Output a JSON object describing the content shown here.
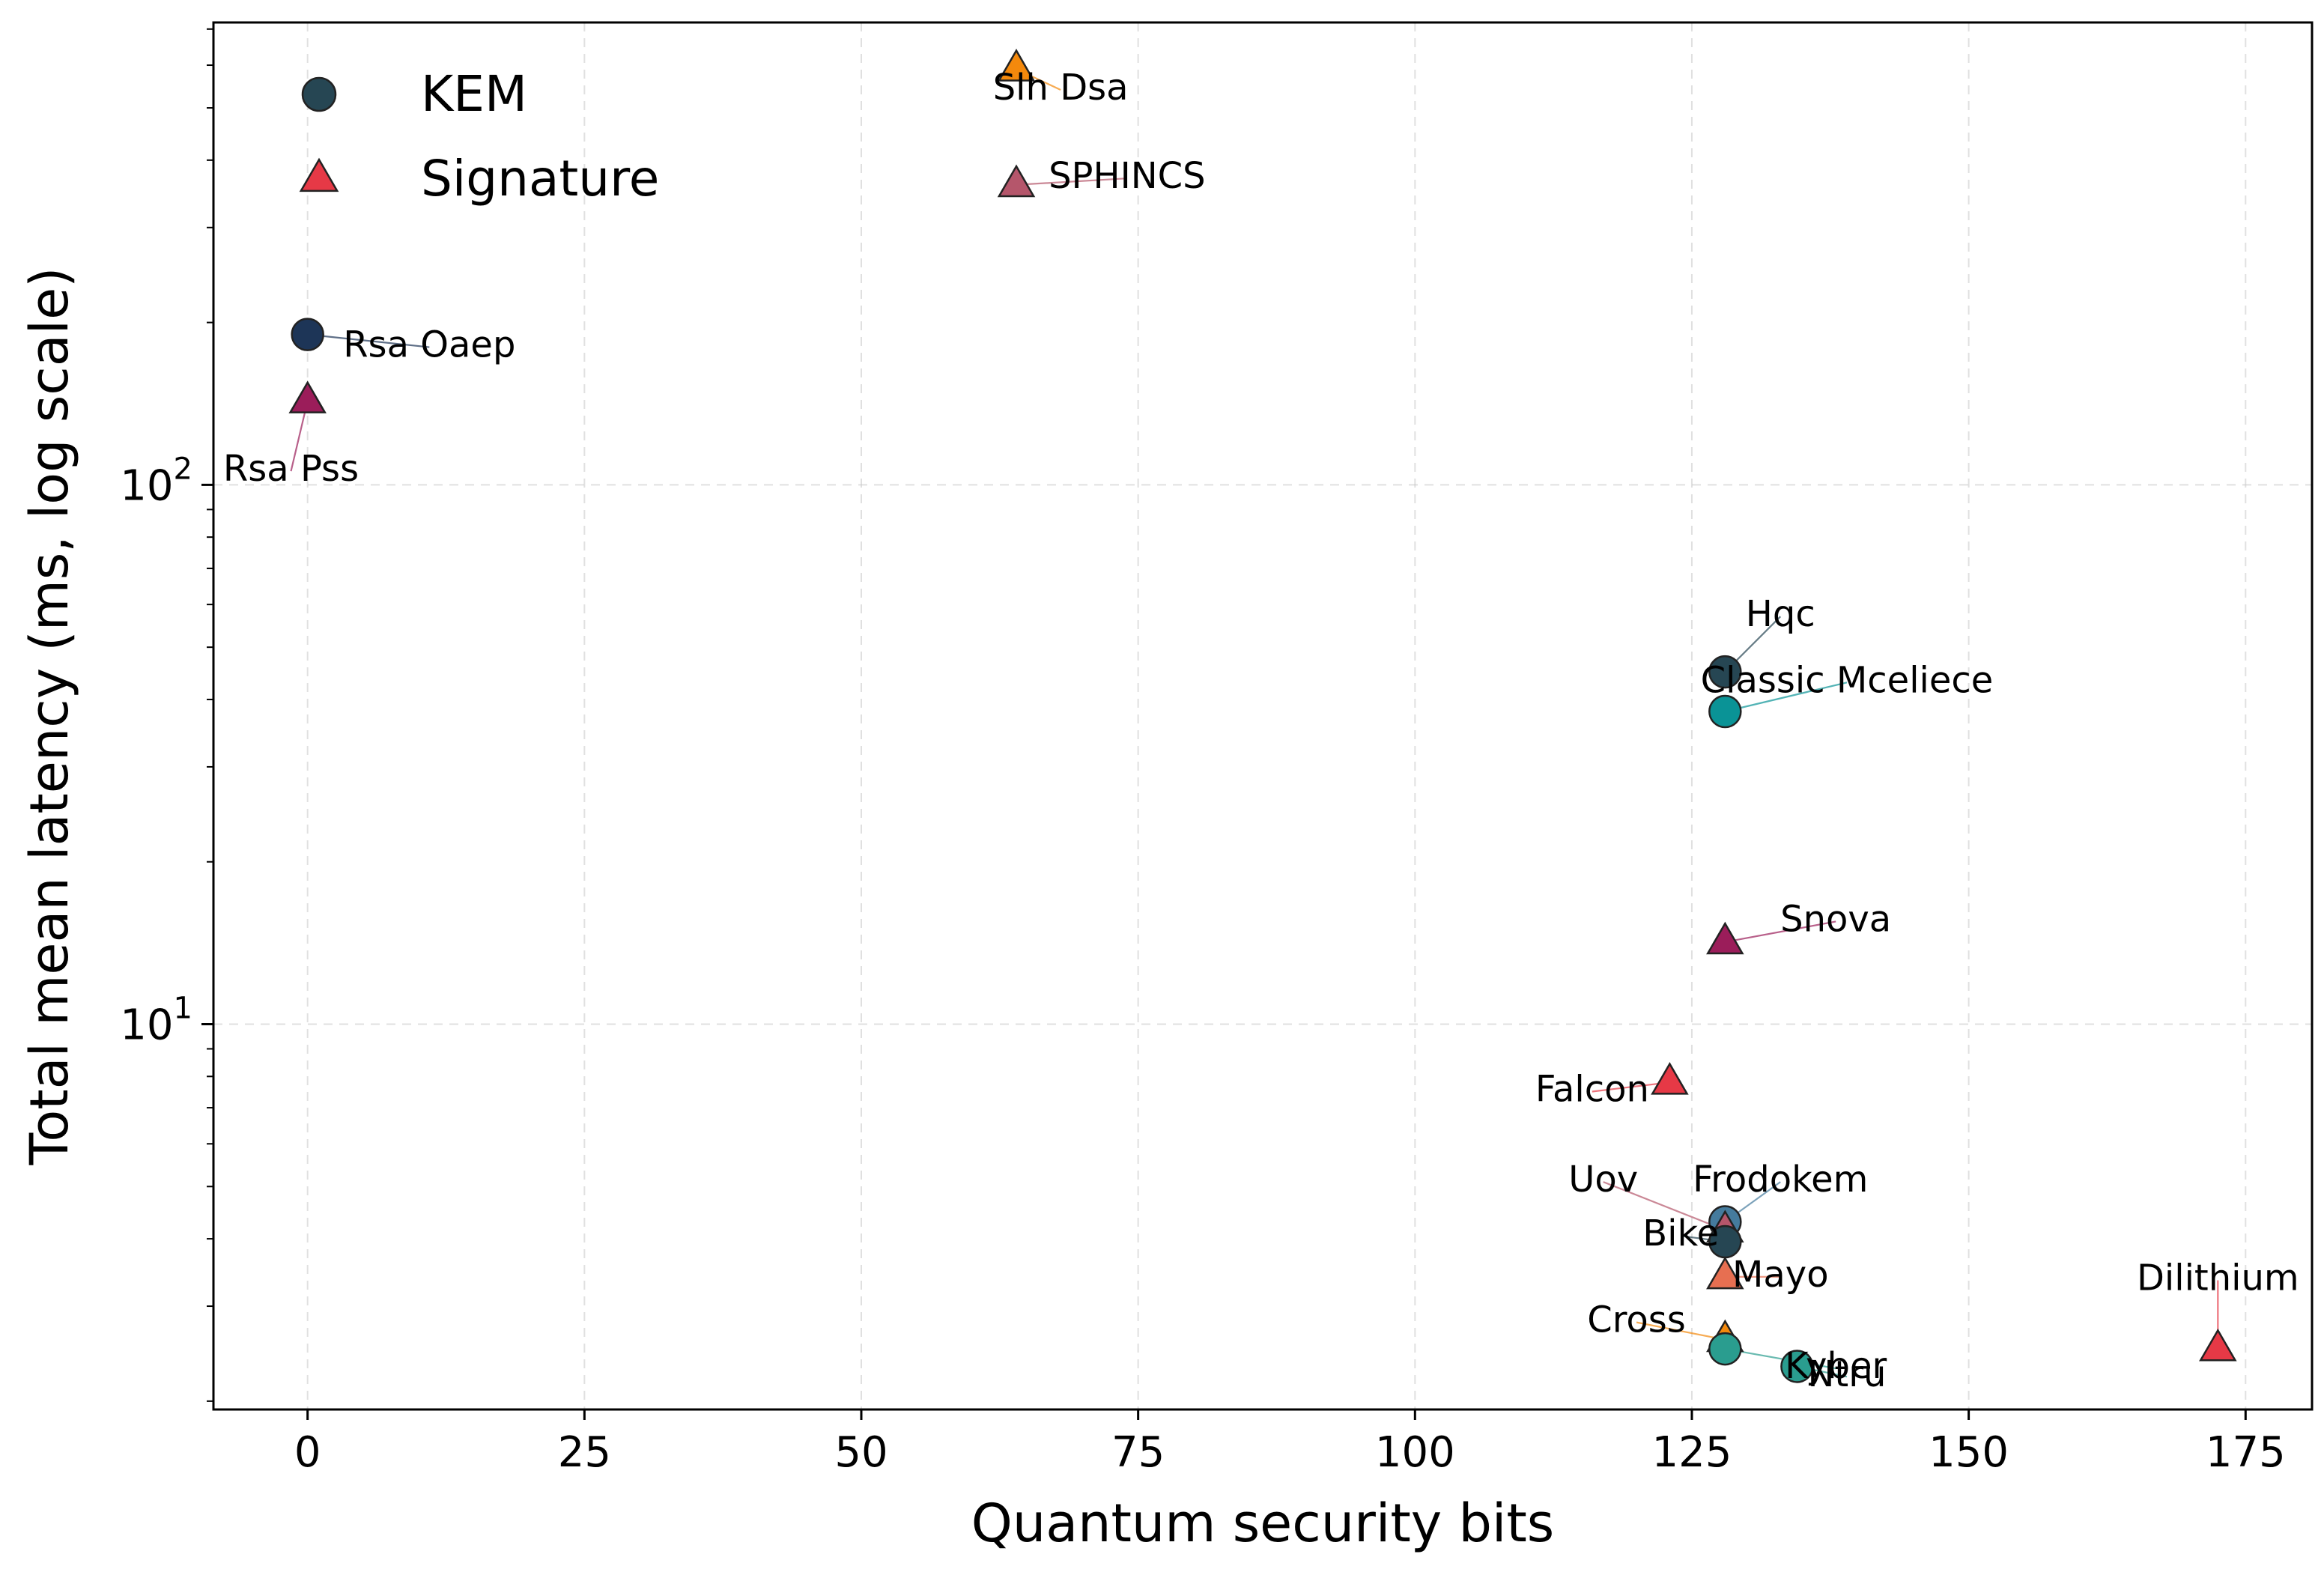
{
  "chart_data": {
    "type": "scatter",
    "title": "",
    "xlabel": "Quantum security bits",
    "ylabel": "Total mean latency (ms, log scale)",
    "yscale": "log",
    "xlim": [
      -8.5,
      181
    ],
    "ylim": [
      1.93,
      720
    ],
    "grid": true,
    "legend_position": "top-left",
    "x_ticks": [
      {
        "value": 0,
        "label": "0"
      },
      {
        "value": 25,
        "label": "25"
      },
      {
        "value": 50,
        "label": "50"
      },
      {
        "value": 75,
        "label": "75"
      },
      {
        "value": 100,
        "label": "100"
      },
      {
        "value": 125,
        "label": "125"
      },
      {
        "value": 150,
        "label": "150"
      },
      {
        "value": 175,
        "label": "175"
      }
    ],
    "y_major_ticks": [
      {
        "value": 10,
        "base": "10",
        "exp": "1"
      },
      {
        "value": 100,
        "base": "10",
        "exp": "2"
      }
    ],
    "legend": [
      {
        "name": "KEM",
        "marker": "circle",
        "color": "#264653"
      },
      {
        "name": "Signature",
        "marker": "triangle",
        "color": "#e63946"
      }
    ],
    "points": [
      {
        "label": "Slh Dsa",
        "type": "Signature",
        "x": 64,
        "y": 590,
        "color": "#f4890c",
        "lx": 68,
        "ly": 540
      },
      {
        "label": "SPHINCS",
        "type": "Signature",
        "x": 64,
        "y": 360,
        "color": "#b5566b",
        "lx": 74,
        "ly": 370
      },
      {
        "label": "Rsa Oaep",
        "type": "KEM",
        "x": 0,
        "y": 190,
        "color": "#1d3557",
        "lx": 11,
        "ly": 180
      },
      {
        "label": "Rsa Pss",
        "type": "Signature",
        "x": 0,
        "y": 143,
        "color": "#9b1d5a",
        "lx": -1.5,
        "ly": 106
      },
      {
        "label": "Hqc",
        "type": "KEM",
        "x": 128,
        "y": 45,
        "color": "#264653",
        "lx": 133,
        "ly": 57
      },
      {
        "label": "Classic Mceliece",
        "type": "KEM",
        "x": 128,
        "y": 38,
        "color": "#0a9396",
        "lx": 139,
        "ly": 43
      },
      {
        "label": "Snova",
        "type": "Signature",
        "x": 128,
        "y": 14.2,
        "color": "#9b1d5a",
        "lx": 138,
        "ly": 15.5
      },
      {
        "label": "Falcon",
        "type": "Signature",
        "x": 123,
        "y": 7.8,
        "color": "#e63946",
        "lx": 116,
        "ly": 7.5
      },
      {
        "label": "Frodokem",
        "type": "KEM",
        "x": 128,
        "y": 4.3,
        "color": "#457b9d",
        "lx": 133,
        "ly": 5.1
      },
      {
        "label": "Uov",
        "type": "Signature",
        "x": 128,
        "y": 4.15,
        "color": "#b5566b",
        "lx": 117,
        "ly": 5.1
      },
      {
        "label": "Bike",
        "type": "KEM",
        "x": 128,
        "y": 3.95,
        "color": "#264653",
        "lx": 124,
        "ly": 4.05
      },
      {
        "label": "Mayo",
        "type": "Signature",
        "x": 128,
        "y": 3.4,
        "color": "#e76f51",
        "lx": 133,
        "ly": 3.4
      },
      {
        "label": "Cross",
        "type": "Signature",
        "x": 128,
        "y": 2.6,
        "color": "#f4890c",
        "lx": 120,
        "ly": 2.8
      },
      {
        "label": "Dilithium",
        "type": "Signature",
        "x": 172.5,
        "y": 2.5,
        "color": "#e63946",
        "lx": 172.5,
        "ly": 3.35
      },
      {
        "label": "Kyber",
        "type": "KEM",
        "x": 128,
        "y": 2.5,
        "color": "#2a9d8f",
        "lx": 138,
        "ly": 2.3
      },
      {
        "label": "Ntru",
        "type": "KEM",
        "x": 134.5,
        "y": 2.32,
        "color": "#2a9d8f",
        "lx": 139,
        "ly": 2.22
      }
    ]
  }
}
